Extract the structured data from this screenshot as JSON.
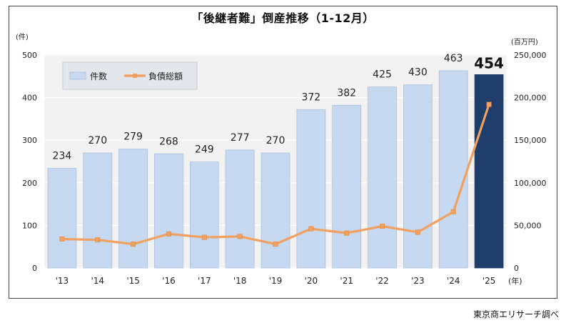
{
  "title": "「後継者難」倒産推移（1-12月）",
  "source": "東京商エリサーチ調べ",
  "chart_data": {
    "type": "bar",
    "categories": [
      "'13",
      "'14",
      "'15",
      "'16",
      "'17",
      "'18",
      "'19",
      "'20",
      "'21",
      "'22",
      "'23",
      "'24",
      "'25"
    ],
    "x_unit": "(年)",
    "series": [
      {
        "name": "件数",
        "type": "bar",
        "axis": "left",
        "values": [
          234,
          270,
          279,
          268,
          249,
          277,
          270,
          372,
          382,
          425,
          430,
          463,
          454
        ],
        "labels": [
          "234",
          "270",
          "279",
          "268",
          "249",
          "277",
          "270",
          "372",
          "382",
          "425",
          "430",
          "463",
          "454"
        ],
        "color": "#c6d9f1",
        "highlight_color": "#1f3d6b",
        "highlight_index": 12
      },
      {
        "name": "負債総額",
        "type": "line",
        "axis": "right",
        "values": [
          34000,
          33000,
          28000,
          40000,
          36000,
          37000,
          28000,
          46000,
          41000,
          49000,
          42000,
          66000,
          192000
        ],
        "color": "#f0a060"
      }
    ],
    "y_left": {
      "unit": "(件)",
      "min": 0,
      "max": 500,
      "ticks": [
        "0",
        "100",
        "200",
        "300",
        "400",
        "500"
      ]
    },
    "y_right": {
      "unit": "(百万円)",
      "min": 0,
      "max": 250000,
      "ticks": [
        "0",
        "50,000",
        "100,000",
        "150,000",
        "200,000",
        "250,000"
      ]
    },
    "grid": true,
    "legend_position": "top-left"
  }
}
